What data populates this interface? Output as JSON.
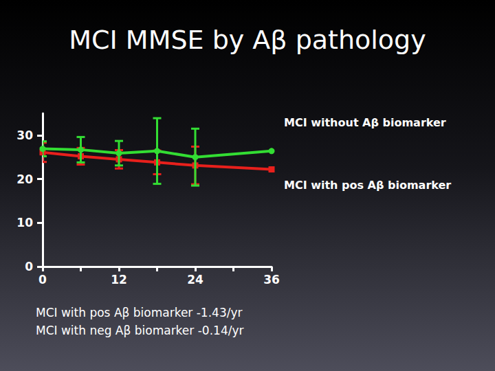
{
  "chart_data": {
    "type": "line",
    "title": "MCI MMSE by Aβ pathology",
    "x": [
      0,
      6,
      12,
      18,
      24,
      36
    ],
    "series": [
      {
        "name": "MCI without Aβ biomarker",
        "color": "#33dd33",
        "marker": "circle",
        "values": [
          26.9,
          26.7,
          25.9,
          26.4,
          25.0,
          26.4
        ],
        "errors": [
          1.7,
          2.9,
          2.8,
          7.5,
          6.5,
          null
        ]
      },
      {
        "name": "MCI with pos Aβ biomarker",
        "color": "#e8201c",
        "marker": "square",
        "values": [
          26.1,
          25.2,
          24.5,
          23.8,
          23.1,
          22.2
        ],
        "errors": [
          2.2,
          1.9,
          2.1,
          2.7,
          4.3,
          null
        ]
      }
    ],
    "xlim": [
      0,
      36
    ],
    "xticks": [
      0,
      12,
      24,
      36
    ],
    "ylim": [
      0,
      35
    ],
    "yticks": [
      0,
      10,
      20,
      30
    ],
    "grid": false,
    "annotations": [
      "MCI with pos Aβ biomarker -1.43/yr",
      "MCI with neg Aβ biomarker -0.14/yr"
    ]
  }
}
